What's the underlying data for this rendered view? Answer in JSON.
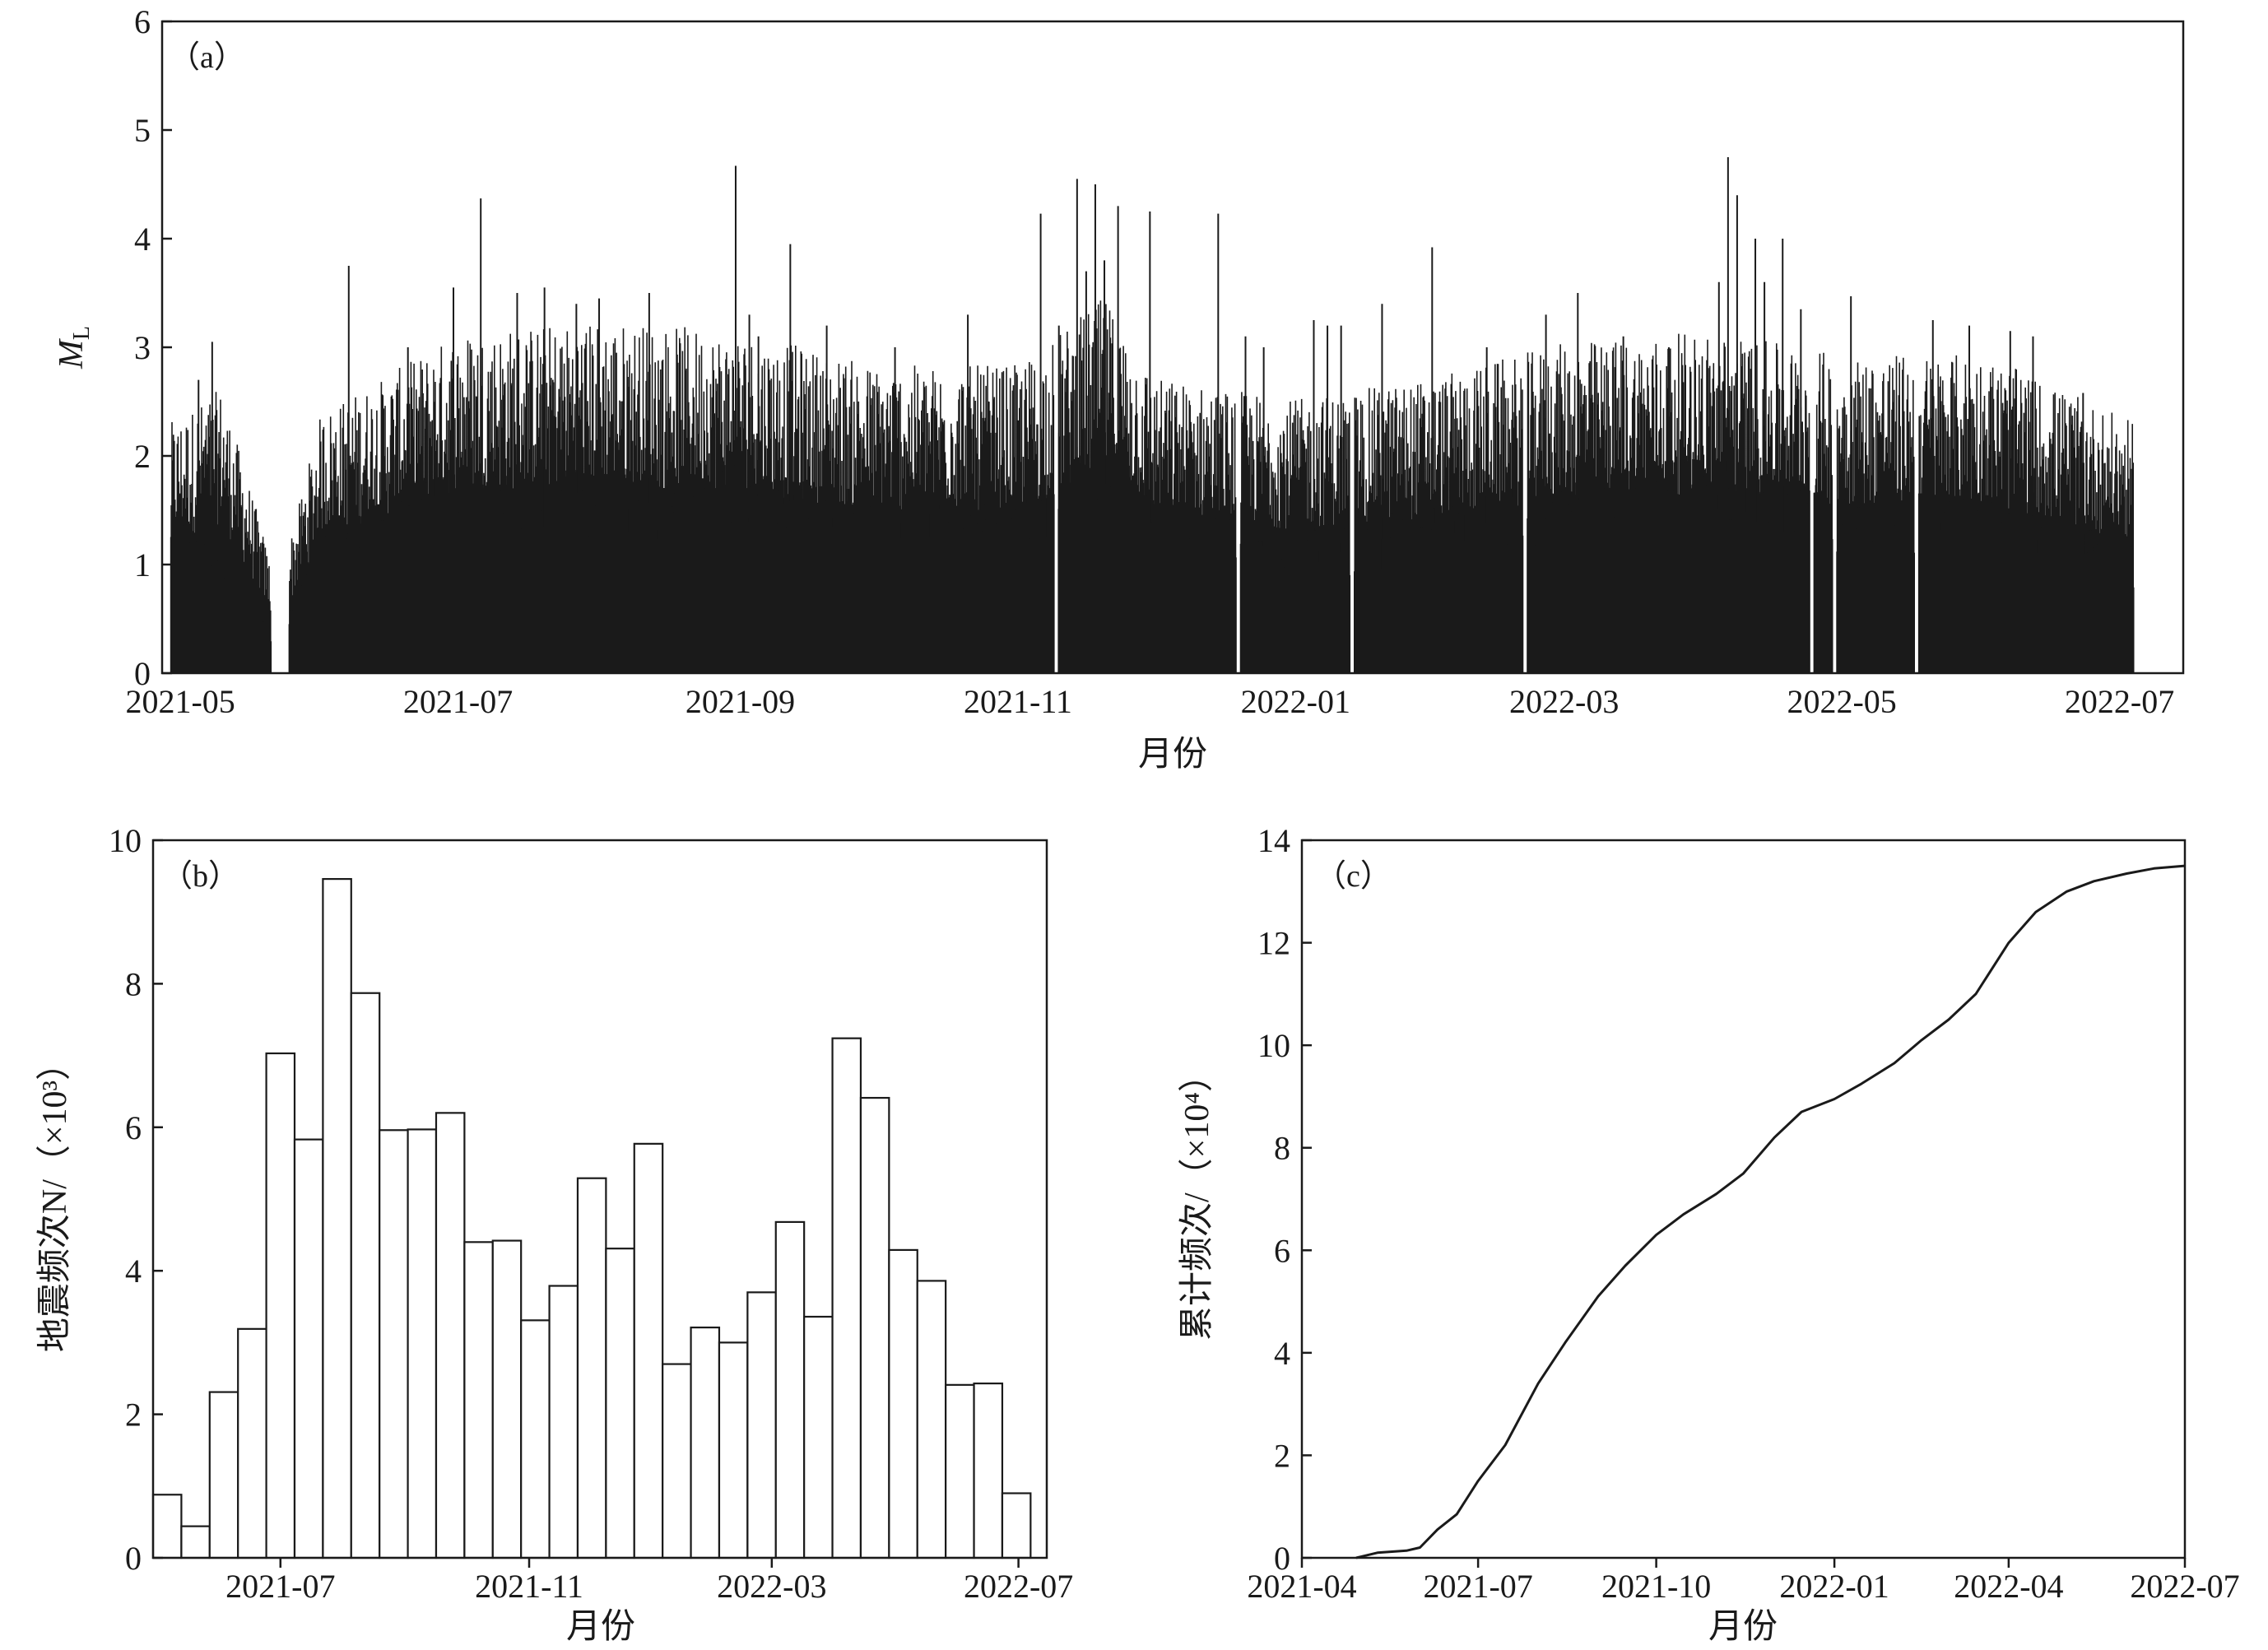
{
  "chart_data": [
    {
      "panel": "a",
      "panel_label": "（a）",
      "type": "bar",
      "title": "",
      "xlabel": "月份",
      "ylabel": "M",
      "ylabel_sub": "L",
      "xlim": [
        "2021-04-27",
        "2022-07-15"
      ],
      "ylim": [
        0,
        6
      ],
      "x_ticks": [
        "2021-05",
        "2021-07",
        "2021-09",
        "2021-11",
        "2022-01",
        "2022-03",
        "2022-05",
        "2022-07"
      ],
      "y_ticks": [
        0,
        1,
        2,
        3,
        4,
        5,
        6
      ],
      "series_color": "#1a1a1a",
      "data_start": "2021-04-29",
      "data_end": "2022-07-04",
      "typical_band": [
        [
          "2021-04-29",
          1.2
        ],
        [
          "2021-05-10",
          1.0
        ],
        [
          "2021-05-18",
          0.5
        ],
        [
          "2021-05-22",
          0.3
        ],
        [
          "2021-05-26",
          0.6
        ],
        [
          "2021-06-01",
          1.2
        ],
        [
          "2021-06-15",
          1.4
        ],
        [
          "2021-07-01",
          1.6
        ],
        [
          "2021-08-01",
          1.6
        ],
        [
          "2021-09-01",
          1.6
        ],
        [
          "2021-10-01",
          1.4
        ],
        [
          "2021-11-01",
          1.4
        ],
        [
          "2021-11-20",
          1.8
        ],
        [
          "2021-12-01",
          1.4
        ],
        [
          "2022-01-01",
          1.1
        ],
        [
          "2022-02-01",
          1.3
        ],
        [
          "2022-03-01",
          1.5
        ],
        [
          "2022-04-01",
          1.7
        ],
        [
          "2022-05-01",
          1.4
        ],
        [
          "2022-06-01",
          1.4
        ],
        [
          "2022-07-04",
          1.0
        ]
      ],
      "peak_band": [
        [
          "2021-04-29",
          2.2
        ],
        [
          "2021-05-10",
          2.5
        ],
        [
          "2021-05-18",
          1.4
        ],
        [
          "2021-05-22",
          0.8
        ],
        [
          "2021-05-26",
          1.3
        ],
        [
          "2021-06-01",
          2.3
        ],
        [
          "2021-06-15",
          2.6
        ],
        [
          "2021-07-01",
          3.0
        ],
        [
          "2021-08-01",
          3.1
        ],
        [
          "2021-09-01",
          3.0
        ],
        [
          "2021-10-01",
          2.7
        ],
        [
          "2021-11-01",
          2.7
        ],
        [
          "2021-11-20",
          3.3
        ],
        [
          "2021-12-01",
          2.6
        ],
        [
          "2022-01-01",
          2.4
        ],
        [
          "2022-02-01",
          2.6
        ],
        [
          "2022-03-01",
          2.9
        ],
        [
          "2022-04-01",
          3.0
        ],
        [
          "2022-05-01",
          2.8
        ],
        [
          "2022-06-01",
          2.8
        ],
        [
          "2022-07-04",
          2.2
        ]
      ],
      "gaps": [
        [
          "2021-05-21",
          "2021-05-25"
        ],
        [
          "2021-11-09",
          "2021-11-10"
        ],
        [
          "2021-12-19",
          "2021-12-20"
        ],
        [
          "2022-01-13",
          "2022-01-14"
        ],
        [
          "2022-02-20",
          "2022-02-21"
        ],
        [
          "2022-04-24",
          "2022-04-25"
        ],
        [
          "2022-04-29",
          "2022-04-30"
        ],
        [
          "2022-05-17",
          "2022-05-18"
        ]
      ],
      "large_events": [
        [
          "2021-05-05",
          2.7
        ],
        [
          "2021-05-08",
          3.05
        ],
        [
          "2021-06-07",
          3.75
        ],
        [
          "2021-06-20",
          3.0
        ],
        [
          "2021-06-30",
          3.55
        ],
        [
          "2021-07-06",
          4.37
        ],
        [
          "2021-07-14",
          3.5
        ],
        [
          "2021-07-20",
          3.55
        ],
        [
          "2021-07-27",
          3.4
        ],
        [
          "2021-08-01",
          3.45
        ],
        [
          "2021-08-12",
          3.5
        ],
        [
          "2021-08-31",
          4.67
        ],
        [
          "2021-09-03",
          3.3
        ],
        [
          "2021-09-05",
          3.1
        ],
        [
          "2021-09-12",
          3.95
        ],
        [
          "2021-09-20",
          3.2
        ],
        [
          "2021-10-05",
          3.0
        ],
        [
          "2021-10-21",
          3.3
        ],
        [
          "2021-11-06",
          4.23
        ],
        [
          "2021-11-10",
          3.2
        ],
        [
          "2021-11-14",
          4.55
        ],
        [
          "2021-11-16",
          3.7
        ],
        [
          "2021-11-18",
          4.5
        ],
        [
          "2021-11-20",
          3.8
        ],
        [
          "2021-11-23",
          4.3
        ],
        [
          "2021-11-30",
          4.25
        ],
        [
          "2021-12-15",
          4.23
        ],
        [
          "2021-12-21",
          3.1
        ],
        [
          "2021-12-25",
          3.0
        ],
        [
          "2022-01-05",
          3.25
        ],
        [
          "2022-01-08",
          3.2
        ],
        [
          "2022-01-11",
          3.2
        ],
        [
          "2022-01-20",
          3.4
        ],
        [
          "2022-01-31",
          3.92
        ],
        [
          "2022-02-12",
          3.0
        ],
        [
          "2022-02-25",
          3.3
        ],
        [
          "2022-03-04",
          3.5
        ],
        [
          "2022-03-14",
          3.1
        ],
        [
          "2022-03-24",
          3.0
        ],
        [
          "2022-04-04",
          3.6
        ],
        [
          "2022-04-06",
          4.75
        ],
        [
          "2022-04-08",
          4.4
        ],
        [
          "2022-04-12",
          4.0
        ],
        [
          "2022-04-14",
          3.6
        ],
        [
          "2022-04-18",
          4.0
        ],
        [
          "2022-04-22",
          3.35
        ],
        [
          "2022-05-03",
          3.47
        ],
        [
          "2022-05-21",
          3.25
        ],
        [
          "2022-05-29",
          3.2
        ],
        [
          "2022-06-07",
          3.15
        ],
        [
          "2022-06-12",
          3.1
        ],
        [
          "2022-06-23",
          2.58
        ]
      ]
    },
    {
      "panel": "b",
      "panel_label": "（b）",
      "type": "bar",
      "title": "",
      "xlabel": "月份",
      "ylabel": "地震频次N/（×10³）",
      "xlim": [
        "2021-04-29",
        "2022-07-15"
      ],
      "ylim": [
        0,
        10
      ],
      "x_ticks": [
        "2021-07",
        "2021-11",
        "2022-03",
        "2022-07"
      ],
      "y_ticks": [
        0,
        2,
        4,
        6,
        8,
        10
      ],
      "bin_days": 14,
      "first_bin_start": "2021-04-29",
      "values": [
        0.88,
        0.44,
        2.31,
        3.19,
        7.03,
        5.83,
        9.46,
        7.87,
        5.96,
        5.97,
        6.2,
        4.4,
        4.42,
        3.31,
        3.79,
        5.29,
        4.31,
        5.77,
        2.7,
        3.21,
        3.0,
        3.7,
        4.68,
        3.36,
        7.24,
        6.41,
        4.29,
        3.86,
        2.41,
        2.43,
        0.9
      ]
    },
    {
      "panel": "c",
      "panel_label": "（c）",
      "type": "line",
      "title": "",
      "xlabel": "月份",
      "ylabel": "累计频次/（×10⁴）",
      "xlim": [
        "2021-04-01",
        "2022-07-01"
      ],
      "ylim": [
        0,
        14
      ],
      "x_ticks": [
        "2021-04",
        "2021-07",
        "2021-10",
        "2022-01",
        "2022-04",
        "2022-07"
      ],
      "y_ticks": [
        0,
        2,
        4,
        6,
        8,
        10,
        12,
        14
      ],
      "x": [
        "2021-04-29",
        "2021-05-10",
        "2021-05-25",
        "2021-06-01",
        "2021-06-10",
        "2021-06-20",
        "2021-07-01",
        "2021-07-15",
        "2021-08-01",
        "2021-08-15",
        "2021-09-01",
        "2021-09-15",
        "2021-10-01",
        "2021-10-15",
        "2021-11-01",
        "2021-11-15",
        "2021-12-01",
        "2021-12-15",
        "2022-01-01",
        "2022-01-15",
        "2022-02-01",
        "2022-02-15",
        "2022-03-01",
        "2022-03-15",
        "2022-04-01",
        "2022-04-15",
        "2022-05-01",
        "2022-05-15",
        "2022-06-01",
        "2022-06-15",
        "2022-07-01"
      ],
      "values": [
        0.0,
        0.1,
        0.14,
        0.2,
        0.55,
        0.85,
        1.5,
        2.2,
        3.4,
        4.2,
        5.1,
        5.7,
        6.3,
        6.7,
        7.1,
        7.5,
        8.2,
        8.7,
        8.95,
        9.25,
        9.65,
        10.1,
        10.5,
        11.0,
        12.0,
        12.6,
        13.0,
        13.2,
        13.35,
        13.45,
        13.5
      ]
    }
  ]
}
